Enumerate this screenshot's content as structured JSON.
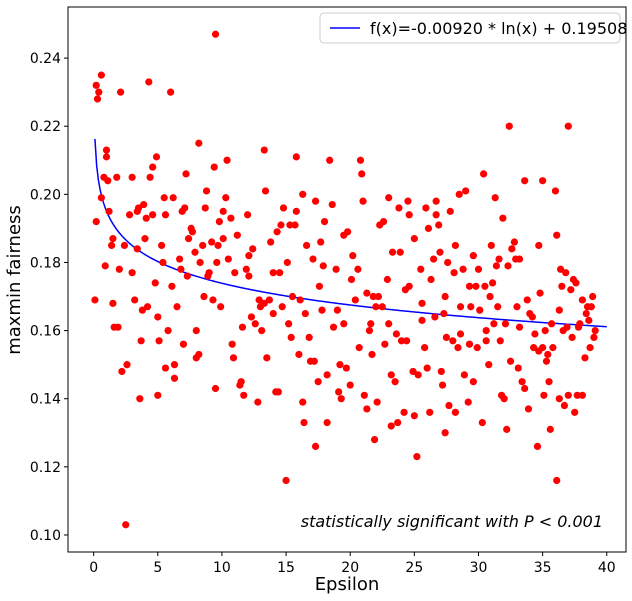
{
  "chart_data": {
    "type": "scatter",
    "title": "",
    "xlabel": "Epsilon",
    "ylabel": "maxmin fairness",
    "xlim": [
      -2,
      41.5
    ],
    "ylim": [
      0.095,
      0.255
    ],
    "xticks": [
      0,
      5,
      10,
      15,
      20,
      25,
      30,
      35,
      40
    ],
    "xtick_labels": [
      "0",
      "5",
      "10",
      "15",
      "20",
      "25",
      "30",
      "35",
      "40"
    ],
    "yticks": [
      0.1,
      0.12,
      0.14,
      0.16,
      0.18,
      0.2,
      0.22,
      0.24
    ],
    "ytick_labels": [
      "0.10",
      "0.12",
      "0.14",
      "0.16",
      "0.18",
      "0.20",
      "0.22",
      "0.24"
    ],
    "grid": false,
    "legend_position": "top-right",
    "annotation": "statistically significant with P < 0.001",
    "point_color": "#ff0000",
    "fit_color": "#0000ff",
    "fit": {
      "label": "f(x)=-0.00920 * ln(x) + 0.19508",
      "a": -0.0092,
      "b": 0.19508,
      "x_range": [
        0.1,
        40
      ]
    },
    "points": [
      [
        0.1,
        0.169
      ],
      [
        0.2,
        0.192
      ],
      [
        0.2,
        0.232
      ],
      [
        0.3,
        0.228
      ],
      [
        0.4,
        0.23
      ],
      [
        0.6,
        0.235
      ],
      [
        0.6,
        0.199
      ],
      [
        0.8,
        0.205
      ],
      [
        0.9,
        0.179
      ],
      [
        1.0,
        0.213
      ],
      [
        1.0,
        0.211
      ],
      [
        1.1,
        0.204
      ],
      [
        1.2,
        0.195
      ],
      [
        1.4,
        0.185
      ],
      [
        1.5,
        0.187
      ],
      [
        1.5,
        0.168
      ],
      [
        1.6,
        0.161
      ],
      [
        1.8,
        0.205
      ],
      [
        1.9,
        0.161
      ],
      [
        2.0,
        0.178
      ],
      [
        2.1,
        0.23
      ],
      [
        2.2,
        0.148
      ],
      [
        2.4,
        0.185
      ],
      [
        2.5,
        0.103
      ],
      [
        2.6,
        0.15
      ],
      [
        2.8,
        0.194
      ],
      [
        3.0,
        0.205
      ],
      [
        3.0,
        0.177
      ],
      [
        3.2,
        0.169
      ],
      [
        3.4,
        0.195
      ],
      [
        3.4,
        0.184
      ],
      [
        3.5,
        0.196
      ],
      [
        3.6,
        0.14
      ],
      [
        3.7,
        0.157
      ],
      [
        3.8,
        0.166
      ],
      [
        3.9,
        0.197
      ],
      [
        4.0,
        0.187
      ],
      [
        4.1,
        0.193
      ],
      [
        4.2,
        0.167
      ],
      [
        4.3,
        0.233
      ],
      [
        4.4,
        0.205
      ],
      [
        4.6,
        0.208
      ],
      [
        4.6,
        0.194
      ],
      [
        4.8,
        0.174
      ],
      [
        4.9,
        0.211
      ],
      [
        5.0,
        0.164
      ],
      [
        5.0,
        0.141
      ],
      [
        5.1,
        0.157
      ],
      [
        5.3,
        0.185
      ],
      [
        5.4,
        0.18
      ],
      [
        5.5,
        0.199
      ],
      [
        5.6,
        0.194
      ],
      [
        5.6,
        0.149
      ],
      [
        5.8,
        0.16
      ],
      [
        6.0,
        0.23
      ],
      [
        6.1,
        0.173
      ],
      [
        6.2,
        0.199
      ],
      [
        6.3,
        0.146
      ],
      [
        6.3,
        0.15
      ],
      [
        6.5,
        0.167
      ],
      [
        6.7,
        0.181
      ],
      [
        6.8,
        0.178
      ],
      [
        6.9,
        0.195
      ],
      [
        7.0,
        0.156
      ],
      [
        7.1,
        0.196
      ],
      [
        7.2,
        0.206
      ],
      [
        7.3,
        0.176
      ],
      [
        7.4,
        0.187
      ],
      [
        7.6,
        0.19
      ],
      [
        7.7,
        0.189
      ],
      [
        7.9,
        0.183
      ],
      [
        8.0,
        0.152
      ],
      [
        8.0,
        0.16
      ],
      [
        8.2,
        0.153
      ],
      [
        8.2,
        0.215
      ],
      [
        8.3,
        0.18
      ],
      [
        8.5,
        0.185
      ],
      [
        8.6,
        0.17
      ],
      [
        8.7,
        0.196
      ],
      [
        8.8,
        0.201
      ],
      [
        8.9,
        0.176
      ],
      [
        9.0,
        0.177
      ],
      [
        9.2,
        0.186
      ],
      [
        9.3,
        0.169
      ],
      [
        9.4,
        0.208
      ],
      [
        9.5,
        0.247
      ],
      [
        9.5,
        0.143
      ],
      [
        9.6,
        0.18
      ],
      [
        9.7,
        0.185
      ],
      [
        9.8,
        0.192
      ],
      [
        9.9,
        0.167
      ],
      [
        10.1,
        0.195
      ],
      [
        10.1,
        0.187
      ],
      [
        10.3,
        0.199
      ],
      [
        10.4,
        0.21
      ],
      [
        10.5,
        0.181
      ],
      [
        10.7,
        0.193
      ],
      [
        10.8,
        0.156
      ],
      [
        10.9,
        0.152
      ],
      [
        11.0,
        0.177
      ],
      [
        11.2,
        0.188
      ],
      [
        11.4,
        0.144
      ],
      [
        11.5,
        0.145
      ],
      [
        11.6,
        0.161
      ],
      [
        11.7,
        0.141
      ],
      [
        11.9,
        0.178
      ],
      [
        12.0,
        0.194
      ],
      [
        12.1,
        0.182
      ],
      [
        12.1,
        0.176
      ],
      [
        12.3,
        0.164
      ],
      [
        12.4,
        0.184
      ],
      [
        12.6,
        0.162
      ],
      [
        12.8,
        0.139
      ],
      [
        12.9,
        0.169
      ],
      [
        13.0,
        0.167
      ],
      [
        13.1,
        0.16
      ],
      [
        13.3,
        0.168
      ],
      [
        13.3,
        0.213
      ],
      [
        13.4,
        0.201
      ],
      [
        13.5,
        0.152
      ],
      [
        13.7,
        0.169
      ],
      [
        13.8,
        0.186
      ],
      [
        14.0,
        0.165
      ],
      [
        14.0,
        0.177
      ],
      [
        14.2,
        0.142
      ],
      [
        14.3,
        0.189
      ],
      [
        14.4,
        0.142
      ],
      [
        14.5,
        0.177
      ],
      [
        14.6,
        0.191
      ],
      [
        14.7,
        0.167
      ],
      [
        14.8,
        0.196
      ],
      [
        15.0,
        0.116
      ],
      [
        15.1,
        0.18
      ],
      [
        15.2,
        0.162
      ],
      [
        15.3,
        0.191
      ],
      [
        15.4,
        0.158
      ],
      [
        15.5,
        0.17
      ],
      [
        15.7,
        0.191
      ],
      [
        15.8,
        0.195
      ],
      [
        15.8,
        0.211
      ],
      [
        16.0,
        0.153
      ],
      [
        16.1,
        0.169
      ],
      [
        16.3,
        0.2
      ],
      [
        16.3,
        0.139
      ],
      [
        16.4,
        0.133
      ],
      [
        16.5,
        0.165
      ],
      [
        16.6,
        0.185
      ],
      [
        16.8,
        0.158
      ],
      [
        16.9,
        0.151
      ],
      [
        17.1,
        0.181
      ],
      [
        17.2,
        0.151
      ],
      [
        17.3,
        0.198
      ],
      [
        17.3,
        0.126
      ],
      [
        17.5,
        0.145
      ],
      [
        17.6,
        0.173
      ],
      [
        17.7,
        0.186
      ],
      [
        17.8,
        0.166
      ],
      [
        17.9,
        0.179
      ],
      [
        18.0,
        0.192
      ],
      [
        18.2,
        0.133
      ],
      [
        18.2,
        0.147
      ],
      [
        18.4,
        0.21
      ],
      [
        18.6,
        0.197
      ],
      [
        18.7,
        0.161
      ],
      [
        18.9,
        0.178
      ],
      [
        19.0,
        0.166
      ],
      [
        19.1,
        0.142
      ],
      [
        19.2,
        0.15
      ],
      [
        19.3,
        0.14
      ],
      [
        19.5,
        0.188
      ],
      [
        19.5,
        0.162
      ],
      [
        19.7,
        0.149
      ],
      [
        19.8,
        0.189
      ],
      [
        20.0,
        0.144
      ],
      [
        20.1,
        0.175
      ],
      [
        20.2,
        0.182
      ],
      [
        20.4,
        0.169
      ],
      [
        20.6,
        0.178
      ],
      [
        20.7,
        0.155
      ],
      [
        20.8,
        0.21
      ],
      [
        20.9,
        0.206
      ],
      [
        21.0,
        0.198
      ],
      [
        21.1,
        0.141
      ],
      [
        21.3,
        0.171
      ],
      [
        21.3,
        0.137
      ],
      [
        21.5,
        0.16
      ],
      [
        21.6,
        0.162
      ],
      [
        21.7,
        0.153
      ],
      [
        21.8,
        0.17
      ],
      [
        21.9,
        0.128
      ],
      [
        22.0,
        0.167
      ],
      [
        22.1,
        0.139
      ],
      [
        22.2,
        0.17
      ],
      [
        22.3,
        0.191
      ],
      [
        22.5,
        0.167
      ],
      [
        22.6,
        0.192
      ],
      [
        22.7,
        0.156
      ],
      [
        22.9,
        0.175
      ],
      [
        23.0,
        0.199
      ],
      [
        23.0,
        0.162
      ],
      [
        23.2,
        0.147
      ],
      [
        23.2,
        0.132
      ],
      [
        23.3,
        0.183
      ],
      [
        23.5,
        0.145
      ],
      [
        23.6,
        0.159
      ],
      [
        23.7,
        0.133
      ],
      [
        23.8,
        0.196
      ],
      [
        23.9,
        0.183
      ],
      [
        24.0,
        0.157
      ],
      [
        24.2,
        0.136
      ],
      [
        24.3,
        0.172
      ],
      [
        24.4,
        0.157
      ],
      [
        24.5,
        0.198
      ],
      [
        24.6,
        0.194
      ],
      [
        24.6,
        0.173
      ],
      [
        24.9,
        0.148
      ],
      [
        25.0,
        0.187
      ],
      [
        25.0,
        0.135
      ],
      [
        25.2,
        0.123
      ],
      [
        25.3,
        0.147
      ],
      [
        25.5,
        0.178
      ],
      [
        25.6,
        0.168
      ],
      [
        25.6,
        0.163
      ],
      [
        25.8,
        0.155
      ],
      [
        25.9,
        0.196
      ],
      [
        26.0,
        0.149
      ],
      [
        26.1,
        0.19
      ],
      [
        26.2,
        0.136
      ],
      [
        26.3,
        0.175
      ],
      [
        26.5,
        0.181
      ],
      [
        26.6,
        0.164
      ],
      [
        26.7,
        0.194
      ],
      [
        26.7,
        0.198
      ],
      [
        26.9,
        0.191
      ],
      [
        27.0,
        0.183
      ],
      [
        27.1,
        0.148
      ],
      [
        27.2,
        0.144
      ],
      [
        27.3,
        0.165
      ],
      [
        27.4,
        0.17
      ],
      [
        27.4,
        0.13
      ],
      [
        27.5,
        0.158
      ],
      [
        27.6,
        0.18
      ],
      [
        27.7,
        0.138
      ],
      [
        27.8,
        0.195
      ],
      [
        28.0,
        0.157
      ],
      [
        28.1,
        0.177
      ],
      [
        28.2,
        0.136
      ],
      [
        28.2,
        0.185
      ],
      [
        28.4,
        0.155
      ],
      [
        28.5,
        0.2
      ],
      [
        28.6,
        0.159
      ],
      [
        28.6,
        0.167
      ],
      [
        28.8,
        0.178
      ],
      [
        28.9,
        0.147
      ],
      [
        29.0,
        0.201
      ],
      [
        29.2,
        0.139
      ],
      [
        29.3,
        0.173
      ],
      [
        29.3,
        0.156
      ],
      [
        29.4,
        0.167
      ],
      [
        29.6,
        0.145
      ],
      [
        29.6,
        0.182
      ],
      [
        29.8,
        0.173
      ],
      [
        29.9,
        0.155
      ],
      [
        30.0,
        0.178
      ],
      [
        30.1,
        0.166
      ],
      [
        30.3,
        0.133
      ],
      [
        30.4,
        0.206
      ],
      [
        30.5,
        0.173
      ],
      [
        30.6,
        0.157
      ],
      [
        30.6,
        0.16
      ],
      [
        30.8,
        0.15
      ],
      [
        30.9,
        0.17
      ],
      [
        31.0,
        0.185
      ],
      [
        31.1,
        0.174
      ],
      [
        31.2,
        0.162
      ],
      [
        31.3,
        0.199
      ],
      [
        31.4,
        0.179
      ],
      [
        31.5,
        0.167
      ],
      [
        31.6,
        0.181
      ],
      [
        31.7,
        0.157
      ],
      [
        31.8,
        0.141
      ],
      [
        31.9,
        0.193
      ],
      [
        32.0,
        0.14
      ],
      [
        32.1,
        0.162
      ],
      [
        32.2,
        0.131
      ],
      [
        32.3,
        0.179
      ],
      [
        32.4,
        0.22
      ],
      [
        32.5,
        0.151
      ],
      [
        32.6,
        0.184
      ],
      [
        32.8,
        0.186
      ],
      [
        32.9,
        0.181
      ],
      [
        33.0,
        0.167
      ],
      [
        33.1,
        0.149
      ],
      [
        33.2,
        0.181
      ],
      [
        33.2,
        0.161
      ],
      [
        33.4,
        0.145
      ],
      [
        33.6,
        0.204
      ],
      [
        33.6,
        0.143
      ],
      [
        33.8,
        0.169
      ],
      [
        33.9,
        0.137
      ],
      [
        34.0,
        0.165
      ],
      [
        34.2,
        0.164
      ],
      [
        34.3,
        0.155
      ],
      [
        34.4,
        0.159
      ],
      [
        34.6,
        0.126
      ],
      [
        34.7,
        0.154
      ],
      [
        34.7,
        0.185
      ],
      [
        34.8,
        0.171
      ],
      [
        35.0,
        0.204
      ],
      [
        35.0,
        0.155
      ],
      [
        35.1,
        0.141
      ],
      [
        35.2,
        0.16
      ],
      [
        35.3,
        0.151
      ],
      [
        35.4,
        0.153
      ],
      [
        35.5,
        0.145
      ],
      [
        35.6,
        0.131
      ],
      [
        35.7,
        0.162
      ],
      [
        35.8,
        0.155
      ],
      [
        36.0,
        0.201
      ],
      [
        36.1,
        0.188
      ],
      [
        36.1,
        0.116
      ],
      [
        36.3,
        0.166
      ],
      [
        36.3,
        0.14
      ],
      [
        36.4,
        0.178
      ],
      [
        36.5,
        0.173
      ],
      [
        36.6,
        0.16
      ],
      [
        36.7,
        0.138
      ],
      [
        36.8,
        0.177
      ],
      [
        36.9,
        0.161
      ],
      [
        37.0,
        0.22
      ],
      [
        37.0,
        0.141
      ],
      [
        37.2,
        0.172
      ],
      [
        37.3,
        0.158
      ],
      [
        37.4,
        0.175
      ],
      [
        37.5,
        0.136
      ],
      [
        37.6,
        0.174
      ],
      [
        37.7,
        0.141
      ],
      [
        37.8,
        0.161
      ],
      [
        37.9,
        0.162
      ],
      [
        38.1,
        0.169
      ],
      [
        38.1,
        0.141
      ],
      [
        38.3,
        0.152
      ],
      [
        38.4,
        0.165
      ],
      [
        38.5,
        0.167
      ],
      [
        38.6,
        0.163
      ],
      [
        38.7,
        0.155
      ],
      [
        38.8,
        0.167
      ],
      [
        38.9,
        0.17
      ],
      [
        39.0,
        0.158
      ],
      [
        39.1,
        0.16
      ]
    ]
  }
}
